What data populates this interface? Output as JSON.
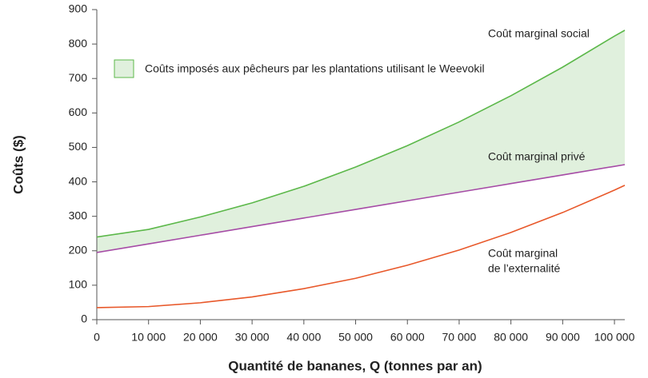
{
  "chart_data": {
    "type": "line",
    "x_label": "Quantité de bananes, Q (tonnes par an)",
    "y_label": "Coûts ($)",
    "x": [
      0,
      10000,
      20000,
      30000,
      40000,
      50000,
      60000,
      70000,
      80000,
      90000,
      100000,
      102000
    ],
    "series": [
      {
        "name": "Coût marginal social",
        "color": "#5cb84a",
        "values": [
          240,
          262,
          298,
          339,
          387,
          443,
          505,
          574,
          650,
          733,
          823,
          840
        ]
      },
      {
        "name": "Coût marginal privé",
        "color": "#a64ca6",
        "values": [
          195,
          220,
          245,
          270,
          295,
          320,
          345,
          370,
          395,
          420,
          445,
          450
        ]
      },
      {
        "name": [
          "Coût marginal",
          "de l’externalité"
        ],
        "color": "#e8582a",
        "values": [
          35,
          38,
          49,
          66,
          90,
          120,
          158,
          202,
          253,
          311,
          376,
          390
        ]
      }
    ],
    "shaded_area": {
      "label": "Coûts imposés aux pêcheurs par les plantations utilisant le Weevokil",
      "color": "#e0f0dd",
      "edge": "#5cb84a"
    },
    "xlim": [
      0,
      102000
    ],
    "ylim": [
      0,
      900
    ],
    "xticks": [
      0,
      {
        "value": 10000,
        "label": "10 000"
      },
      {
        "value": 20000,
        "label": "20 000"
      },
      {
        "value": 30000,
        "label": "30 000"
      },
      {
        "value": 40000,
        "label": "40 000"
      },
      {
        "value": 50000,
        "label": "50 000"
      },
      {
        "value": 60000,
        "label": "60 000"
      },
      {
        "value": 70000,
        "label": "70 000"
      },
      {
        "value": 80000,
        "label": "80 000"
      },
      {
        "value": 90000,
        "label": "90 000"
      },
      {
        "value": 100000,
        "label": "100 000"
      }
    ],
    "yticks": [
      0,
      100,
      200,
      300,
      400,
      500,
      600,
      700,
      800,
      900
    ]
  }
}
